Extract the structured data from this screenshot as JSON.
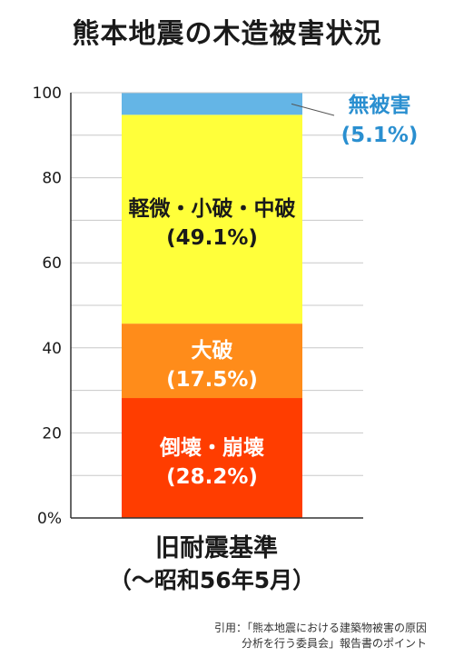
{
  "title": "熊本地震の木造被害状況",
  "chart_data": {
    "type": "bar",
    "stacked": true,
    "categories": [
      "旧耐震基準"
    ],
    "category_sublabel": "（～昭和56年5月）",
    "ylim": [
      0,
      100
    ],
    "yticks": [
      {
        "value": 0,
        "label": "0%"
      },
      {
        "value": 20,
        "label": "20"
      },
      {
        "value": 40,
        "label": "40"
      },
      {
        "value": 60,
        "label": "60"
      },
      {
        "value": 80,
        "label": "80"
      },
      {
        "value": 100,
        "label": "100"
      }
    ],
    "grid": true,
    "series": [
      {
        "name": "倒壊・崩壊",
        "pct_label": "(28.2%)",
        "values": [
          28.2
        ],
        "color": "#ff3d00",
        "label_color": "#ffffff",
        "label_position": "inside"
      },
      {
        "name": "大破",
        "pct_label": "(17.5%)",
        "values": [
          17.5
        ],
        "color": "#ff8c1a",
        "label_color": "#ffffff",
        "label_position": "inside"
      },
      {
        "name": "軽微・小破・中破",
        "pct_label": "(49.1%)",
        "values": [
          49.1
        ],
        "color": "#ffff3a",
        "label_color": "#1a1a1a",
        "label_position": "inside"
      },
      {
        "name": "無被害",
        "pct_label": "(5.1%)",
        "values": [
          5.1
        ],
        "color": "#64b5e6",
        "label_color": "#2a8fd0",
        "label_position": "outside-right"
      }
    ]
  },
  "source": {
    "line1": "引用：「熊本地震における建築物被害の原因",
    "line2": "分析を行う委員会」報告書のポイント"
  }
}
